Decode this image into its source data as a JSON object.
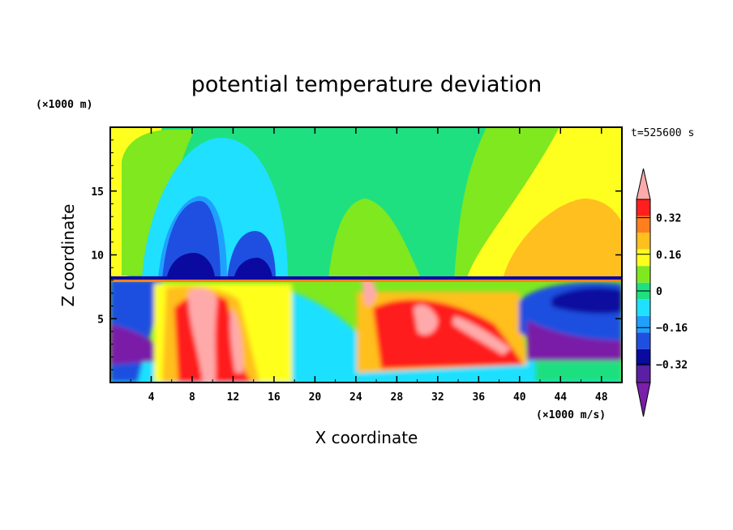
{
  "chart_data": {
    "type": "heatmap",
    "title": "potential temperature deviation",
    "xlabel": "X coordinate",
    "ylabel": "Z coordinate",
    "x_unit": "(×1000 m/s)",
    "y_unit": "(×1000 m)",
    "time_label": "t=525600 s",
    "xlim": [
      0,
      50
    ],
    "ylim": [
      0,
      20
    ],
    "x_ticks": [
      4,
      8,
      12,
      16,
      20,
      24,
      28,
      32,
      36,
      40,
      44,
      48
    ],
    "y_ticks": [
      5,
      10,
      15
    ],
    "colorbar": {
      "levels": [
        -0.48,
        -0.4,
        -0.32,
        -0.24,
        -0.16,
        -0.08,
        0,
        0.08,
        0.16,
        0.24,
        0.32,
        0.4,
        0.48
      ],
      "labels": [
        "0.32",
        "0.16",
        "0",
        "−0.16",
        "−0.32"
      ],
      "label_values": [
        0.32,
        0.16,
        0,
        -0.16,
        -0.32
      ],
      "extend": "both",
      "colors": [
        "#7a1fa8",
        "#5b1fa3",
        "#0a0aa0",
        "#1f4fe0",
        "#1fa0ff",
        "#1fe0ff",
        "#1fe080",
        "#7fe81f",
        "#ffff1f",
        "#ffbf1f",
        "#ff7f1f",
        "#ff1f1f",
        "#ffaaaa"
      ]
    },
    "grid": false,
    "legend": "right"
  }
}
